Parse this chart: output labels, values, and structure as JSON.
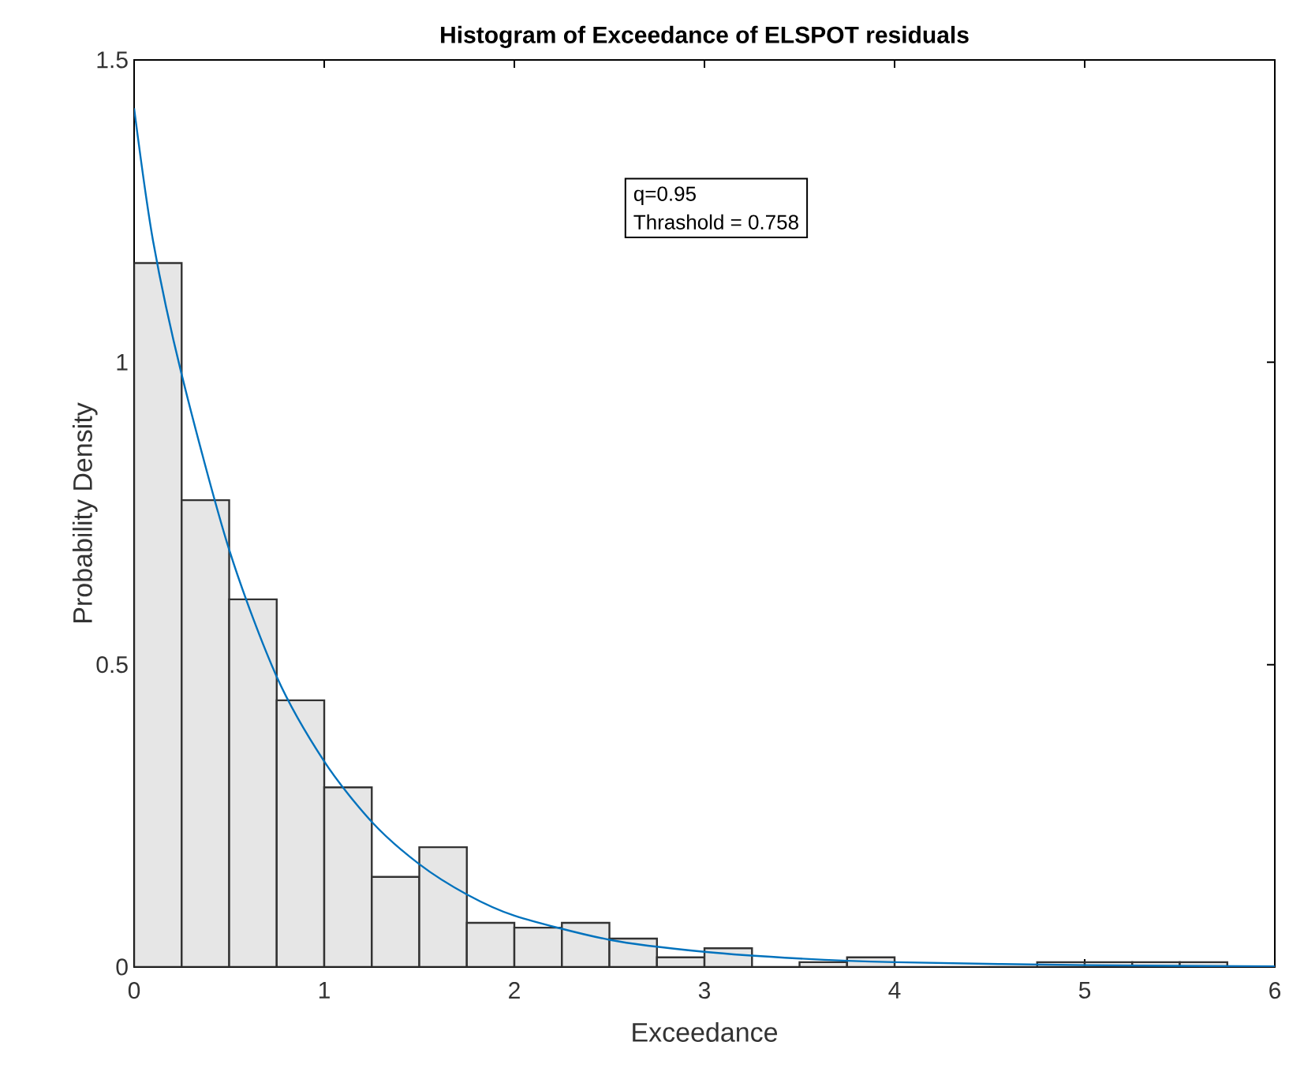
{
  "chart_data": {
    "type": "histogram",
    "title": "Histogram of Exceedance of ELSPOT residuals",
    "xlabel": "Exceedance",
    "ylabel": "Probability Density",
    "annotations": [
      "q=0.95",
      "Thrashold = 0.758"
    ],
    "xlim": [
      0,
      6
    ],
    "ylim": [
      0,
      1.5
    ],
    "xticks": [
      0,
      1,
      2,
      3,
      4,
      5,
      6
    ],
    "yticks": [
      0,
      0.5,
      1,
      1.5
    ],
    "grid": false,
    "series": [
      {
        "color": "#e6e6e6",
        "bins": [
          0,
          0.25,
          0.5,
          0.75,
          1,
          1.25,
          1.5,
          1.75,
          2,
          2.25,
          2.5,
          2.75,
          3,
          3.25,
          3.5,
          3.75,
          4,
          4.25,
          4.5,
          4.75,
          5,
          5.25,
          5.5,
          5.75,
          6
        ],
        "values": [
          1.164,
          0.772,
          0.608,
          0.441,
          0.297,
          0.149,
          0.198,
          0.073,
          0.065,
          0.073,
          0.047,
          0.016,
          0.031,
          0,
          0.008,
          0.016,
          0,
          0,
          0,
          0.008,
          0.008,
          0.008,
          0.008,
          0
        ]
      },
      {
        "type": "line",
        "color": "#0072bd",
        "x": [
          0,
          0.1,
          0.25,
          0.5,
          0.75,
          1,
          1.25,
          1.5,
          1.75,
          2,
          2.5,
          3,
          3.5,
          4,
          5,
          6
        ],
        "values": [
          1.42,
          1.2,
          0.98,
          0.69,
          0.48,
          0.34,
          0.24,
          0.17,
          0.12,
          0.085,
          0.045,
          0.025,
          0.014,
          0.008,
          0.003,
          0.001
        ]
      }
    ]
  }
}
